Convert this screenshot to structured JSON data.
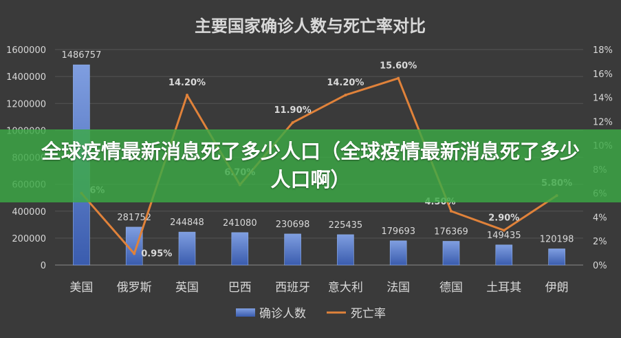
{
  "banner": {
    "text": "全球疫情最新消息死了多少人口（全球疫情最新消息死了多少人口啊）"
  },
  "colors": {
    "background": "#3a3a3a",
    "bar": "#4a6fc0",
    "line": "#e0823a",
    "banner": "#3caa46",
    "text": "#d9d9d9"
  },
  "chart_data": {
    "type": "bar",
    "title": "主要国家确诊人数与死亡率对比",
    "categories": [
      "美国",
      "俄罗斯",
      "英国",
      "巴西",
      "西班牙",
      "意大利",
      "法国",
      "德国",
      "土耳其",
      "伊朗"
    ],
    "series": [
      {
        "name": "确诊人数",
        "type": "bar",
        "axis": "left",
        "values": [
          1486757,
          281752,
          244848,
          241080,
          230698,
          225435,
          179693,
          176369,
          149435,
          120198
        ],
        "labels": [
          "1486757",
          "281752",
          "244848",
          "241080",
          "230698",
          "225435",
          "179693",
          "176369",
          "149435",
          "120198"
        ]
      },
      {
        "name": "死亡率",
        "type": "line",
        "axis": "right",
        "values": [
          6,
          0.95,
          14.2,
          6.7,
          11.9,
          14.2,
          15.6,
          4.5,
          2.9,
          5.8
        ],
        "labels": [
          "6%",
          "0.95%",
          "14.20%",
          "6.70%",
          "11.90%",
          "14.20%",
          "15.60%",
          "4.50%",
          "2.90%",
          "5.80%"
        ]
      }
    ],
    "y_left": {
      "min": 0,
      "max": 1600000,
      "ticks": [
        "0",
        "200000",
        "400000",
        "600000",
        "800000",
        "1000000",
        "1200000",
        "1400000",
        "1600000"
      ]
    },
    "y_right": {
      "min": 0,
      "max": 18,
      "ticks": [
        "0%",
        "2%",
        "4%",
        "6%",
        "8%",
        "10%",
        "12%",
        "14%",
        "16%",
        "18%"
      ]
    },
    "grid": true,
    "legend": "bottom"
  }
}
